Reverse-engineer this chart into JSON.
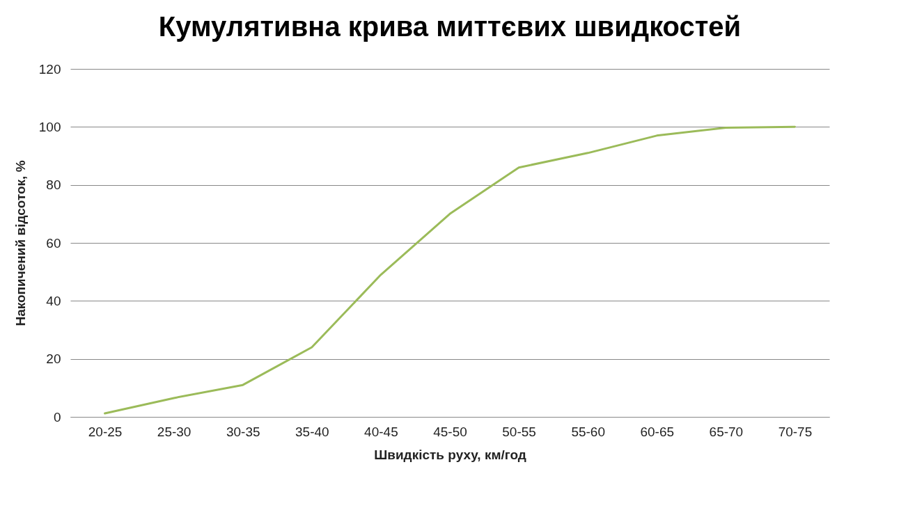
{
  "chart_data": {
    "type": "line",
    "title": "Кумулятивна крива миттєвих швидкостей",
    "xlabel": "Швидкість руху, км/год",
    "ylabel": "Накопичений відсоток, %",
    "categories": [
      "20-25",
      "25-30",
      "30-35",
      "35-40",
      "40-45",
      "45-50",
      "50-55",
      "55-60",
      "60-65",
      "65-70",
      "70-75"
    ],
    "series": [
      {
        "color": "#9bbb59",
        "values": [
          1.2,
          6.5,
          11,
          24,
          49,
          70,
          86,
          91,
          97,
          99.7,
          100
        ]
      }
    ],
    "ylim": [
      0,
      120
    ],
    "yticks": [
      0,
      20,
      40,
      60,
      80,
      100,
      120
    ],
    "grid": "y"
  }
}
